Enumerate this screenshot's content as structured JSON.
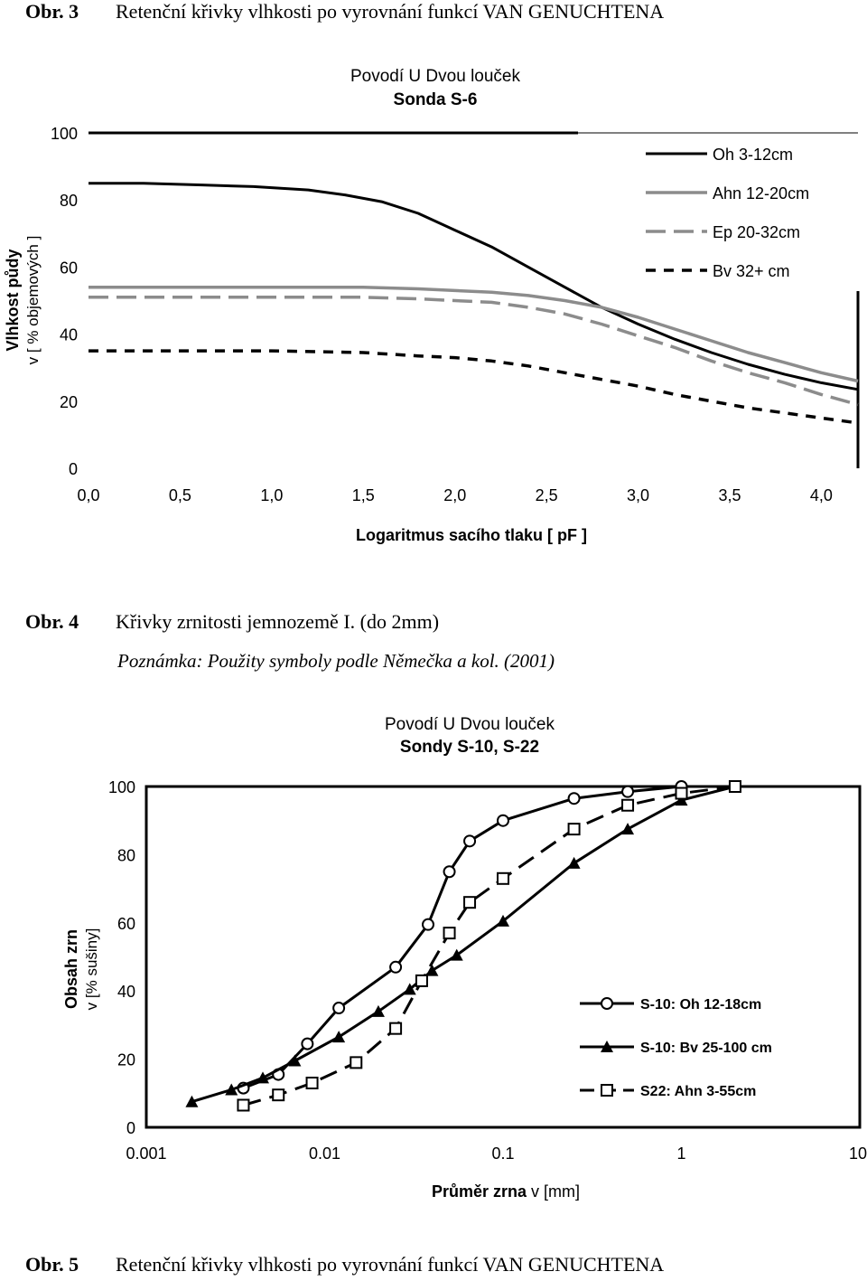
{
  "captions": {
    "obr3": {
      "num": "Obr. 3",
      "text": "Retenční křivky vlhkosti po vyrovnání funkcí VAN GENUCHTENA"
    },
    "obr4": {
      "num": "Obr. 4",
      "text": "Křivky zrnitosti jemnozemě I. (do 2mm)",
      "note": "Poznámka: Použity symboly podle Němečka a kol. (2001)"
    },
    "obr5": {
      "num": "Obr. 5",
      "text": "Retenční křivky vlhkosti po vyrovnání funkcí VAN GENUCHTENA"
    }
  },
  "chart_data": [
    {
      "type": "line",
      "title": "Povodí U Dvou louček",
      "subtitle": "Sonda S-6",
      "xlabel": "Logaritmus sacího tlaku [ pF ]",
      "ylabel": "Vlhkost půdy",
      "ylabel2": "v [ % objemových ]",
      "xlim": [
        0,
        4.2
      ],
      "ylim": [
        0,
        100
      ],
      "xticks": [
        0,
        0.5,
        1.0,
        1.5,
        2.0,
        2.5,
        3.0,
        3.5,
        4.0
      ],
      "xtick_labels": [
        "0,0",
        "0,5",
        "1,0",
        "1,5",
        "2,0",
        "2,5",
        "3,0",
        "3,5",
        "4,0"
      ],
      "yticks": [
        0,
        20,
        40,
        60,
        80,
        100
      ],
      "ytick_labels": [
        "0",
        "20",
        "40",
        "60",
        "80",
        "100"
      ],
      "legend_position": "top-right",
      "series": [
        {
          "name": "Oh 3-12cm",
          "style": "solid-black",
          "x": [
            0,
            0.3,
            0.6,
            0.9,
            1.2,
            1.4,
            1.6,
            1.8,
            2.0,
            2.2,
            2.4,
            2.6,
            2.8,
            3.0,
            3.2,
            3.4,
            3.6,
            3.8,
            4.0,
            4.2
          ],
          "y": [
            85,
            85,
            84.5,
            84,
            83,
            81.5,
            79.5,
            76,
            71,
            66,
            60,
            54,
            48,
            43,
            38.5,
            34.5,
            31,
            28,
            25.5,
            23.5
          ]
        },
        {
          "name": "Ahn 12-20cm",
          "style": "solid-gray",
          "x": [
            0,
            0.5,
            1.0,
            1.5,
            1.8,
            2.0,
            2.2,
            2.4,
            2.6,
            2.8,
            3.0,
            3.2,
            3.4,
            3.6,
            3.8,
            4.0,
            4.2
          ],
          "y": [
            54,
            54,
            54,
            54,
            53.5,
            53,
            52.5,
            51.5,
            50,
            48,
            45,
            41.5,
            38,
            34.5,
            31.5,
            28.5,
            26
          ]
        },
        {
          "name": "Ep 20-32cm",
          "style": "dashed-gray",
          "x": [
            0,
            0.5,
            1.0,
            1.5,
            1.8,
            2.0,
            2.2,
            2.4,
            2.6,
            2.8,
            3.0,
            3.2,
            3.4,
            3.6,
            3.8,
            4.0,
            4.2
          ],
          "y": [
            51,
            51,
            51,
            51,
            50.5,
            50,
            49.5,
            48,
            46,
            43,
            39.5,
            36,
            32,
            28.5,
            25.5,
            22,
            19
          ]
        },
        {
          "name": "Bv 32+ cm",
          "style": "dotted-black",
          "x": [
            0,
            0.5,
            1.0,
            1.5,
            1.8,
            2.0,
            2.2,
            2.4,
            2.6,
            2.8,
            3.0,
            3.2,
            3.4,
            3.6,
            3.8,
            4.0,
            4.2
          ],
          "y": [
            35,
            35,
            35,
            34.5,
            33.5,
            33,
            32,
            30.5,
            28.5,
            26.5,
            24.5,
            22,
            20,
            18,
            16.5,
            15,
            13.5
          ]
        }
      ]
    },
    {
      "type": "line",
      "title": "Povodí U Dvou louček",
      "subtitle": "Sondy S-10, S-22",
      "xlabel": "Průměr zrna",
      "xlabel_unit": "v [mm]",
      "ylabel": "Obsah zrn",
      "ylabel2": "v [% sušiny]",
      "xscale": "log",
      "xlim": [
        0.001,
        10
      ],
      "ylim": [
        0,
        100
      ],
      "xticks": [
        0.001,
        0.01,
        0.1,
        1,
        10
      ],
      "xtick_labels": [
        "0.001",
        "0.01",
        "0.1",
        "1",
        "10"
      ],
      "yticks": [
        0,
        20,
        40,
        60,
        80,
        100
      ],
      "ytick_labels": [
        "0",
        "20",
        "40",
        "60",
        "80",
        "100"
      ],
      "legend_position": "bottom-right",
      "series": [
        {
          "name": "S-10: Oh 12-18cm",
          "marker": "circle-open",
          "style": "solid",
          "x": [
            0.0035,
            0.0055,
            0.008,
            0.012,
            0.025,
            0.038,
            0.05,
            0.065,
            0.1,
            0.25,
            0.5,
            1.0
          ],
          "y": [
            11.5,
            15.5,
            24.5,
            35,
            47,
            59.5,
            75,
            84,
            90,
            96.5,
            98.5,
            100
          ]
        },
        {
          "name": "S-10: Bv 25-100 cm",
          "marker": "triangle-filled",
          "style": "solid",
          "x": [
            0.0018,
            0.003,
            0.0045,
            0.0068,
            0.012,
            0.02,
            0.03,
            0.04,
            0.055,
            0.1,
            0.25,
            0.5,
            1.0,
            2.0
          ],
          "y": [
            7.5,
            11,
            14.5,
            19.5,
            26.5,
            34,
            40.5,
            46,
            50.5,
            60.5,
            77.5,
            87.5,
            96,
            100
          ]
        },
        {
          "name": "S22: Ahn 3-55cm",
          "marker": "square-open",
          "style": "dashed",
          "x": [
            0.0035,
            0.0055,
            0.0085,
            0.015,
            0.025,
            0.035,
            0.05,
            0.065,
            0.1,
            0.25,
            0.5,
            1.0,
            2.0
          ],
          "y": [
            6.5,
            9.5,
            13,
            19,
            29,
            43,
            57,
            66,
            73,
            87.5,
            94.5,
            98,
            100
          ]
        }
      ]
    }
  ]
}
